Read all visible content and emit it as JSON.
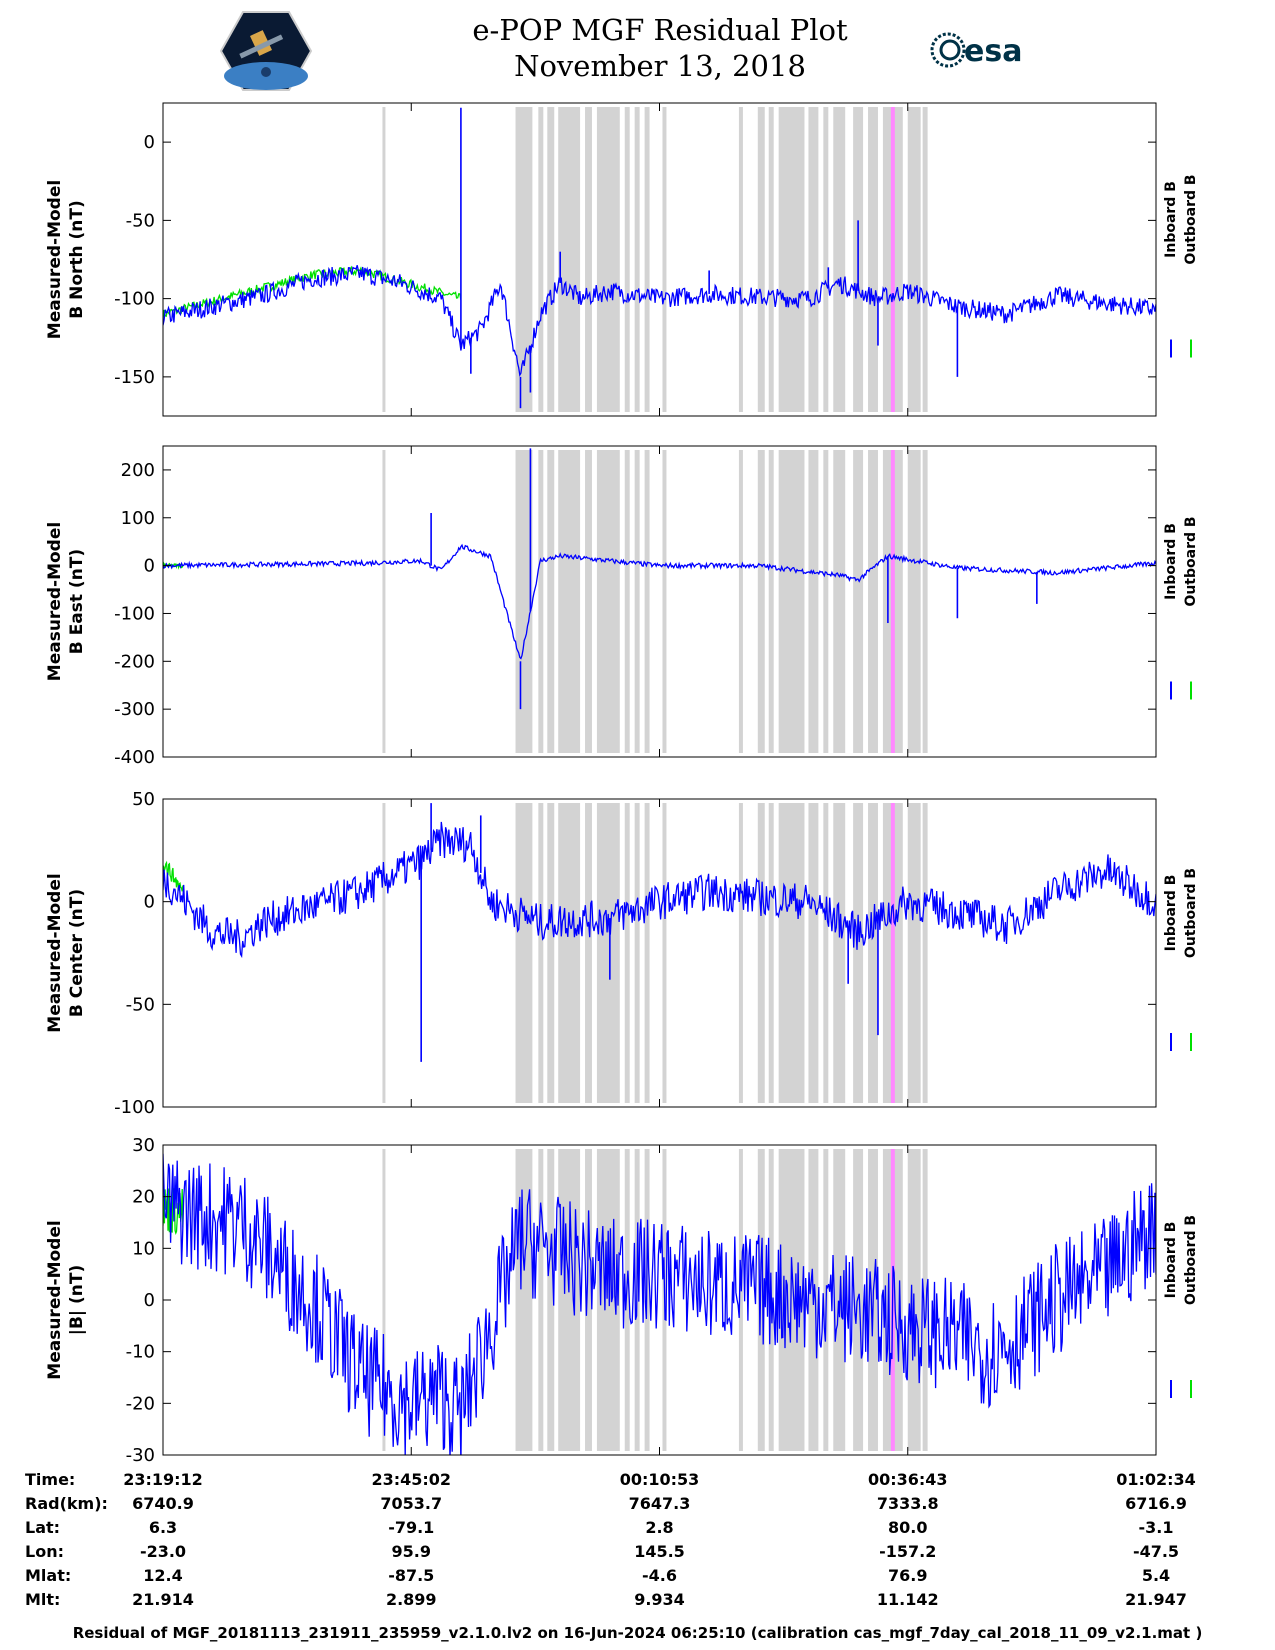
{
  "header": {
    "title_line1": "e-POP MGF Residual Plot",
    "title_line2": "November 13, 2018",
    "left_logo_name": "CASSIOPE",
    "right_logo_name": "esa"
  },
  "colors": {
    "inboard": "#0000ff",
    "outboard": "#00e000",
    "gap_shading": "#d3d3d3",
    "marker": "#ff88ff"
  },
  "chart_data": [
    {
      "type": "line",
      "ylabel_line1": "Measured-Model",
      "ylabel_line2": "B North (nT)",
      "ylim": [
        -175,
        25
      ],
      "yticks": [
        0,
        -50,
        -100,
        -150
      ],
      "legend": [
        "Inboard B",
        "Outboard B"
      ],
      "series": [
        {
          "name": "Inboard B",
          "trend": [
            [
              0,
              -112
            ],
            [
              0.05,
              -105
            ],
            [
              0.1,
              -98
            ],
            [
              0.15,
              -87
            ],
            [
              0.2,
              -84
            ],
            [
              0.24,
              -90
            ],
            [
              0.28,
              -100
            ],
            [
              0.3,
              -130
            ],
            [
              0.32,
              -120
            ],
            [
              0.34,
              -90
            ],
            [
              0.36,
              -150
            ],
            [
              0.38,
              -110
            ],
            [
              0.4,
              -90
            ],
            [
              0.42,
              -100
            ],
            [
              0.45,
              -95
            ],
            [
              0.5,
              -100
            ],
            [
              0.55,
              -97
            ],
            [
              0.6,
              -99
            ],
            [
              0.65,
              -100
            ],
            [
              0.68,
              -90
            ],
            [
              0.72,
              -100
            ],
            [
              0.75,
              -95
            ],
            [
              0.8,
              -105
            ],
            [
              0.85,
              -110
            ],
            [
              0.9,
              -98
            ],
            [
              0.95,
              -103
            ],
            [
              1.0,
              -107
            ]
          ],
          "noise": 6
        },
        {
          "name": "Outboard B",
          "trend": [
            [
              0,
              -110
            ],
            [
              0.15,
              -85
            ],
            [
              0.2,
              -82
            ],
            [
              0.3,
              -100
            ]
          ],
          "noise": 3
        }
      ],
      "spikes": [
        [
          0.3,
          22
        ],
        [
          0.31,
          -148
        ],
        [
          0.36,
          -170
        ],
        [
          0.37,
          -160
        ],
        [
          0.4,
          -70
        ],
        [
          0.55,
          -82
        ],
        [
          0.67,
          -80
        ],
        [
          0.7,
          -50
        ],
        [
          0.72,
          -130
        ],
        [
          0.8,
          -150
        ]
      ]
    },
    {
      "type": "line",
      "ylabel_line1": "Measured-Model",
      "ylabel_line2": "B East (nT)",
      "ylim": [
        -400,
        250
      ],
      "yticks": [
        200,
        100,
        0,
        -100,
        -200,
        -300,
        -400
      ],
      "legend": [
        "Inboard B",
        "Outboard B"
      ],
      "series": [
        {
          "name": "Inboard B",
          "trend": [
            [
              0,
              0
            ],
            [
              0.2,
              5
            ],
            [
              0.26,
              10
            ],
            [
              0.28,
              -10
            ],
            [
              0.3,
              40
            ],
            [
              0.33,
              20
            ],
            [
              0.36,
              -200
            ],
            [
              0.38,
              10
            ],
            [
              0.4,
              20
            ],
            [
              0.5,
              0
            ],
            [
              0.6,
              0
            ],
            [
              0.68,
              -20
            ],
            [
              0.7,
              -30
            ],
            [
              0.73,
              20
            ],
            [
              0.8,
              -5
            ],
            [
              0.9,
              -15
            ],
            [
              1.0,
              5
            ]
          ],
          "noise": 5
        },
        {
          "name": "Outboard B",
          "trend": [
            [
              0,
              0
            ],
            [
              0.02,
              0
            ]
          ],
          "noise": 4
        }
      ],
      "spikes": [
        [
          0.27,
          110
        ],
        [
          0.36,
          -300
        ],
        [
          0.37,
          245
        ],
        [
          0.73,
          -120
        ],
        [
          0.8,
          -110
        ],
        [
          0.88,
          -80
        ]
      ]
    },
    {
      "type": "line",
      "ylabel_line1": "Measured-Model",
      "ylabel_line2": "B Center (nT)",
      "ylim": [
        -100,
        50
      ],
      "yticks": [
        50,
        0,
        -50,
        -100
      ],
      "legend": [
        "Inboard B",
        "Outboard B"
      ],
      "series": [
        {
          "name": "Inboard B",
          "trend": [
            [
              0,
              12
            ],
            [
              0.05,
              -15
            ],
            [
              0.08,
              -18
            ],
            [
              0.1,
              -10
            ],
            [
              0.2,
              5
            ],
            [
              0.26,
              20
            ],
            [
              0.28,
              30
            ],
            [
              0.31,
              28
            ],
            [
              0.33,
              0
            ],
            [
              0.38,
              -10
            ],
            [
              0.45,
              -8
            ],
            [
              0.5,
              0
            ],
            [
              0.55,
              5
            ],
            [
              0.6,
              2
            ],
            [
              0.65,
              0
            ],
            [
              0.7,
              -15
            ],
            [
              0.75,
              0
            ],
            [
              0.8,
              -5
            ],
            [
              0.85,
              -12
            ],
            [
              0.9,
              5
            ],
            [
              0.95,
              15
            ],
            [
              1.0,
              0
            ]
          ],
          "noise": 9
        },
        {
          "name": "Outboard B",
          "trend": [
            [
              0,
              20
            ],
            [
              0.02,
              5
            ]
          ],
          "noise": 4
        }
      ],
      "spikes": [
        [
          0.26,
          -78
        ],
        [
          0.27,
          48
        ],
        [
          0.32,
          42
        ],
        [
          0.45,
          -38
        ],
        [
          0.69,
          -40
        ],
        [
          0.72,
          -65
        ]
      ]
    },
    {
      "type": "line",
      "ylabel_line1": "Measured-Model",
      "ylabel_line2": "|B| (nT)",
      "ylim": [
        -30,
        30
      ],
      "yticks": [
        30,
        20,
        10,
        0,
        -10,
        -20,
        -30
      ],
      "legend": [
        "Inboard B",
        "Outboard B"
      ],
      "series": [
        {
          "name": "Inboard B",
          "trend": [
            [
              0,
              18
            ],
            [
              0.08,
              15
            ],
            [
              0.15,
              0
            ],
            [
              0.2,
              -15
            ],
            [
              0.25,
              -20
            ],
            [
              0.28,
              -18
            ],
            [
              0.3,
              -22
            ],
            [
              0.33,
              -5
            ],
            [
              0.36,
              12
            ],
            [
              0.45,
              5
            ],
            [
              0.5,
              5
            ],
            [
              0.55,
              3
            ],
            [
              0.6,
              2
            ],
            [
              0.65,
              0
            ],
            [
              0.7,
              -2
            ],
            [
              0.75,
              -5
            ],
            [
              0.8,
              -7
            ],
            [
              0.83,
              -10
            ],
            [
              0.86,
              -7
            ],
            [
              0.9,
              0
            ],
            [
              0.95,
              5
            ],
            [
              1.0,
              15
            ]
          ],
          "noise": 11
        },
        {
          "name": "Outboard B",
          "trend": [
            [
              0,
              18
            ],
            [
              0.02,
              17
            ]
          ],
          "noise": 5
        }
      ],
      "spikes": []
    }
  ],
  "gap_bands": [
    [
      0.221,
      0.224
    ],
    [
      0.355,
      0.372
    ],
    [
      0.378,
      0.383
    ],
    [
      0.387,
      0.394
    ],
    [
      0.398,
      0.42
    ],
    [
      0.425,
      0.432
    ],
    [
      0.437,
      0.46
    ],
    [
      0.465,
      0.47
    ],
    [
      0.475,
      0.48
    ],
    [
      0.485,
      0.49
    ],
    [
      0.503,
      0.507
    ],
    [
      0.58,
      0.584
    ],
    [
      0.599,
      0.606
    ],
    [
      0.61,
      0.615
    ],
    [
      0.62,
      0.646
    ],
    [
      0.65,
      0.66
    ],
    [
      0.665,
      0.67
    ],
    [
      0.675,
      0.687
    ],
    [
      0.695,
      0.705
    ],
    [
      0.71,
      0.72
    ],
    [
      0.725,
      0.745
    ],
    [
      0.75,
      0.763
    ],
    [
      0.765,
      0.77
    ]
  ],
  "marker_bands": [
    [
      0.733,
      0.737
    ]
  ],
  "time_table": {
    "row_labels": [
      "Time:",
      "Rad(km):",
      "Lat:",
      "Lon:",
      "Mlat:",
      "Mlt:"
    ],
    "columns": [
      [
        "23:19:12",
        "6740.9",
        "6.3",
        "-23.0",
        "12.4",
        "21.914"
      ],
      [
        "23:45:02",
        "7053.7",
        "-79.1",
        "95.9",
        "-87.5",
        "2.899"
      ],
      [
        "00:10:53",
        "7647.3",
        "2.8",
        "145.5",
        "-4.6",
        "9.934"
      ],
      [
        "00:36:43",
        "7333.8",
        "80.0",
        "-157.2",
        "76.9",
        "11.142"
      ],
      [
        "01:02:34",
        "6716.9",
        "-3.1",
        "-47.5",
        "5.4",
        "21.947"
      ]
    ]
  },
  "footer": "Residual of MGF_20181113_231911_235959_v2.1.0.lv2 on 16-Jun-2024 06:25:10 (calibration cas_mgf_7day_cal_2018_11_09_v2.1.mat )"
}
